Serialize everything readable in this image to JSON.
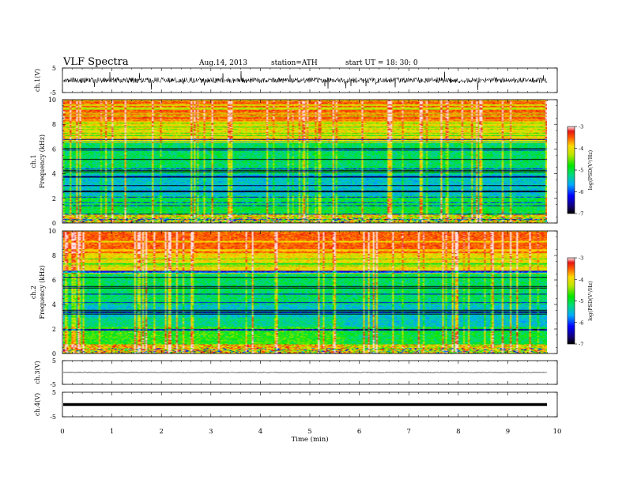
{
  "header": {
    "title": "VLF  Spectra",
    "date": "Aug.14, 2013",
    "station": "station=ATH",
    "start": "start  UT  =   18: 30: 0"
  },
  "chart_data": [
    {
      "type": "line",
      "panel": "ch1-waveform",
      "ylabel": "ch.1(V)",
      "ylim": [
        -5,
        5
      ],
      "yticks": [
        "5",
        "-5"
      ],
      "xlim": [
        0,
        10
      ],
      "description_values": {
        "baseline_V": 0,
        "amplitude_V": 1,
        "spike_max_V": 4
      }
    },
    {
      "type": "heatmap",
      "panel": "ch1-spectrogram",
      "ylabel": "ch.1\nFrequency  (kHz)",
      "ylim": [
        0,
        10
      ],
      "yticks": [
        "0",
        "2",
        "4",
        "6",
        "8",
        "10"
      ],
      "xlim": [
        0,
        9.8
      ],
      "colorbar": {
        "label": "log(PSD(V²/Hz)",
        "range": [
          -7,
          -3
        ],
        "ticks": [
          "-3",
          "-4",
          "-5",
          "-6",
          "-7"
        ]
      }
    },
    {
      "type": "heatmap",
      "panel": "ch2-spectrogram",
      "ylabel": "ch.2\nFrequency  (kHz)",
      "ylim": [
        0,
        10
      ],
      "yticks": [
        "0",
        "2",
        "4",
        "6",
        "8",
        "10"
      ],
      "xlim": [
        0,
        9.8
      ],
      "colorbar": {
        "label": "log(PSD(V²/Hz)",
        "range": [
          -7,
          -3
        ],
        "ticks": [
          "-3",
          "-4",
          "-5",
          "-6",
          "-7"
        ]
      }
    },
    {
      "type": "line",
      "panel": "ch3-waveform",
      "ylabel": "ch.3(V)",
      "ylim": [
        -5,
        5
      ],
      "yticks": [
        "5",
        "-5"
      ],
      "xlim": [
        0,
        10
      ],
      "description_values": {
        "level_V": 0
      }
    },
    {
      "type": "line",
      "panel": "ch4-waveform",
      "ylabel": "ch.4(V)",
      "ylim": [
        -5,
        5
      ],
      "yticks": [
        "5",
        "-5"
      ],
      "xlim": [
        0,
        10
      ],
      "description_values": {
        "level_V": 0
      }
    }
  ],
  "xaxis": {
    "label": "Time  (min)",
    "ticks": [
      "0",
      "1",
      "2",
      "3",
      "4",
      "5",
      "6",
      "7",
      "8",
      "9",
      "10"
    ]
  }
}
